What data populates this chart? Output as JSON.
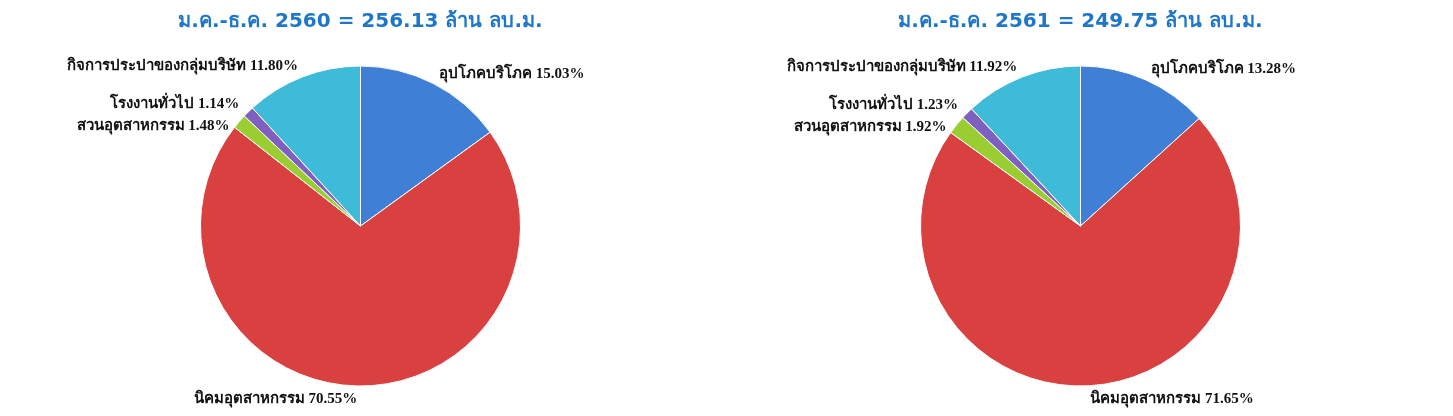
{
  "chart_data": [
    {
      "type": "pie",
      "title": "ม.ค.-ธ.ค. 2560 = 256.13 ล้าน ลบ.ม.",
      "categories": [
        "อุปโภคบริโภค",
        "นิคมอุตสาหกรรม",
        "สวนอุตสาหกรรม",
        "โรงงานทั่วไป",
        "กิจการประปาของกลุ่มบริษัท"
      ],
      "values": [
        15.03,
        70.55,
        1.48,
        1.14,
        11.8
      ],
      "colors": [
        "#3f7fd6",
        "#d94040",
        "#9acd32",
        "#7f5fbf",
        "#3dbbd8"
      ],
      "value_labels": [
        "15.03%",
        "70.55%",
        "1.48%",
        "1.14%",
        "11.80%"
      ]
    },
    {
      "type": "pie",
      "title": "ม.ค.-ธ.ค. 2561 = 249.75 ล้าน ลบ.ม.",
      "categories": [
        "อุปโภคบริโภค",
        "นิคมอุตสาหกรรม",
        "สวนอุตสาหกรรม",
        "โรงงานทั่วไป",
        "กิจการประปาของกลุ่มบริษัท"
      ],
      "values": [
        13.28,
        71.65,
        1.92,
        1.23,
        11.92
      ],
      "colors": [
        "#3f7fd6",
        "#d94040",
        "#9acd32",
        "#7f5fbf",
        "#3dbbd8"
      ],
      "value_labels": [
        "13.28%",
        "71.65%",
        "1.92%",
        "1.23%",
        "11.92%"
      ]
    }
  ]
}
